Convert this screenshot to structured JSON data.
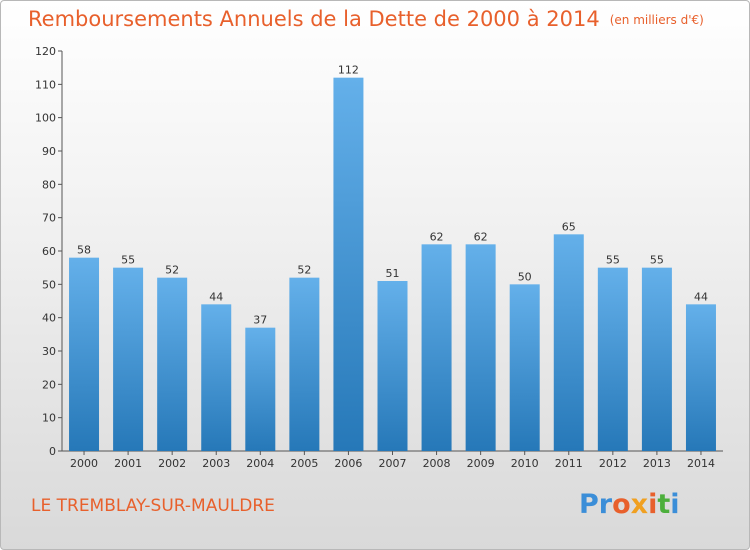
{
  "title": "Remboursements Annuels de la Dette de 2000 à 2014",
  "unit_label": "(en milliers d'€)",
  "commune": "LE TREMBLAY-SUR-MAULDRE",
  "logo": [
    "Pr",
    "o",
    "x",
    "i",
    "t",
    "i"
  ],
  "colors": {
    "bar_top": "#64b0ea",
    "bar_bottom": "#2678b8",
    "title": "#e8602c",
    "grid": "#cfcfcf"
  },
  "chart_data": {
    "type": "bar",
    "title": "Remboursements Annuels de la Dette de 2000 à 2014",
    "unit": "(en milliers d'€)",
    "categories": [
      "2000",
      "2001",
      "2002",
      "2003",
      "2004",
      "2005",
      "2006",
      "2007",
      "2008",
      "2009",
      "2010",
      "2011",
      "2012",
      "2013",
      "2014"
    ],
    "values": [
      58,
      55,
      52,
      44,
      37,
      52,
      112,
      51,
      62,
      62,
      50,
      65,
      55,
      55,
      44
    ],
    "ylim": [
      0,
      120
    ],
    "yticks": [
      0,
      10,
      20,
      30,
      40,
      50,
      60,
      70,
      80,
      90,
      100,
      110,
      120
    ],
    "grid": false,
    "data_labels": true
  }
}
